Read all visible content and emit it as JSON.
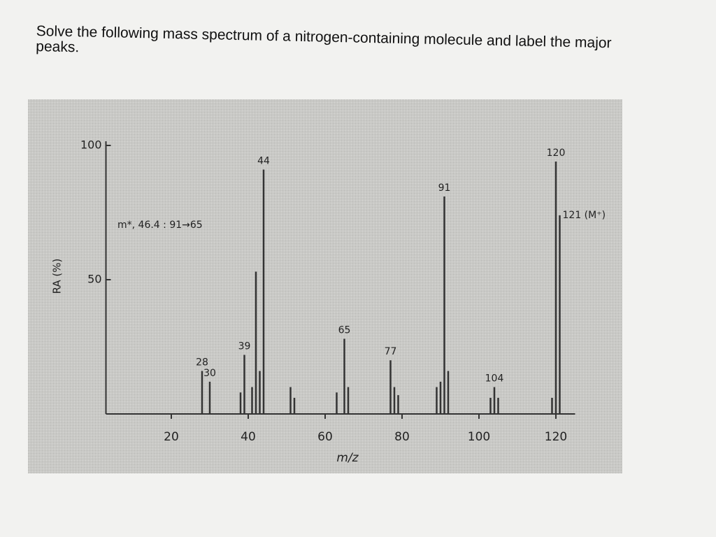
{
  "question": "Solve the following mass spectrum of a nitrogen-containing molecule and label the major peaks.",
  "chart_data": {
    "type": "bar",
    "ylabel": "RA (%)",
    "xlabel": "m/z",
    "annotation": "m*, 46.4 : 91→65",
    "x": [
      28,
      30,
      38,
      39,
      41,
      42,
      43,
      44,
      51,
      52,
      63,
      65,
      66,
      77,
      78,
      79,
      89,
      90,
      91,
      92,
      103,
      104,
      105,
      119,
      120,
      121
    ],
    "values": [
      16,
      12,
      8,
      22,
      10,
      53,
      16,
      91,
      10,
      6,
      8,
      28,
      10,
      20,
      10,
      7,
      10,
      12,
      81,
      16,
      6,
      10,
      6,
      6,
      94,
      74
    ],
    "peak_labels": [
      "28",
      "30",
      null,
      "39",
      null,
      null,
      null,
      "44",
      null,
      null,
      null,
      "65",
      null,
      "77",
      null,
      null,
      null,
      null,
      "91",
      null,
      null,
      "104",
      null,
      null,
      "120",
      "121 (M⁺)"
    ],
    "color": "#333333",
    "xlim": [
      3,
      125
    ],
    "xticks": [
      20,
      40,
      60,
      80,
      100,
      120
    ],
    "ylim": [
      0,
      100
    ],
    "yticks": [
      50,
      100
    ]
  }
}
